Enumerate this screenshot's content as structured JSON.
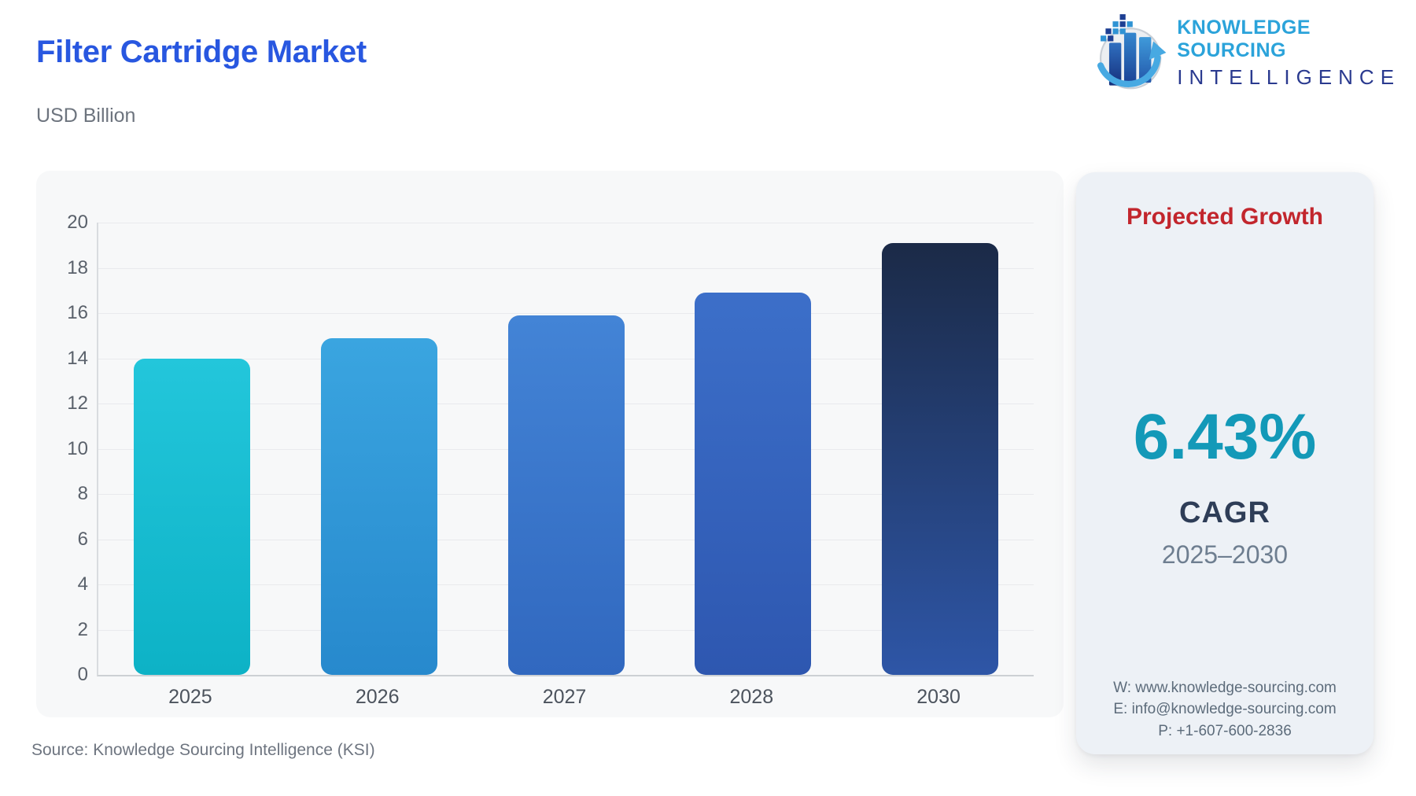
{
  "header": {
    "title": "Filter Cartridge Market",
    "subtitle": "USD Billion",
    "logo": {
      "line1": "KNOWLEDGE SOURCING",
      "line2": "INTELLIGENCE"
    }
  },
  "chart_data": {
    "type": "bar",
    "title": "Filter Cartridge Market",
    "ylabel": "USD Billion",
    "categories": [
      "2025",
      "2026",
      "2027",
      "2028",
      "2030"
    ],
    "values": [
      14.0,
      14.9,
      15.9,
      16.9,
      19.1
    ],
    "ylim": [
      0,
      20
    ],
    "yticks": [
      0,
      2,
      4,
      6,
      8,
      10,
      12,
      14,
      16,
      18,
      20
    ],
    "grid": true,
    "legend": "none",
    "bar_colors": [
      [
        "#23c6db",
        "#0db2c6"
      ],
      [
        "#3aa5e0",
        "#2789cd"
      ],
      [
        "#4384d6",
        "#3168bf"
      ],
      [
        "#3c6fc9",
        "#2e57b0"
      ],
      [
        "#1b2a47",
        "#2e56a7"
      ]
    ]
  },
  "growth_panel": {
    "title": "Projected Growth",
    "value": "6.43%",
    "metric": "CAGR",
    "period": "2025–2030",
    "contact": {
      "website": "W: www.knowledge-sourcing.com",
      "email": "E: info@knowledge-sourcing.com",
      "phone": "P: +1-607-600-2836"
    }
  },
  "footer": {
    "source": "Source: Knowledge Sourcing Intelligence (KSI)"
  },
  "colors": {
    "title_blue": "#2857e0",
    "growth_title_red": "#c2262d",
    "growth_value_teal": "#1399b8",
    "logo_primary": "#2ba3da",
    "logo_secondary": "#2a3a8f"
  }
}
